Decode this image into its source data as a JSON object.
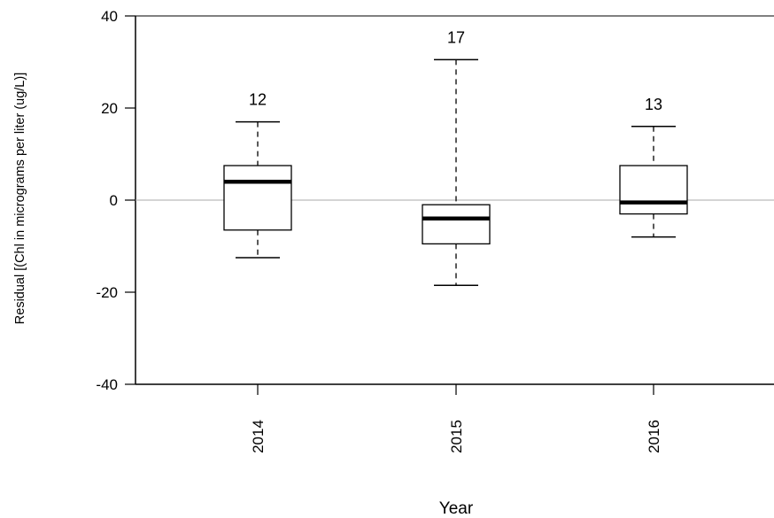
{
  "chart_data": {
    "type": "box",
    "xlabel": "Year",
    "ylabel": "Residual [(Chl in micrograms per liter (ug/L)]",
    "ylim": [
      -40,
      40
    ],
    "yticks": [
      -40,
      -20,
      0,
      20,
      40
    ],
    "reference_line": 0,
    "categories": [
      "2014",
      "2015",
      "2016"
    ],
    "boxes": [
      {
        "category": "2014",
        "n": "12",
        "whisker_low": -12.5,
        "q1": -6.5,
        "median": 4,
        "q3": 7.5,
        "whisker_high": 17
      },
      {
        "category": "2015",
        "n": "17",
        "whisker_low": -18.5,
        "q1": -9.5,
        "median": -4,
        "q3": -1,
        "whisker_high": 30.5
      },
      {
        "category": "2016",
        "n": "13",
        "whisker_low": -8,
        "q1": -3,
        "median": -0.5,
        "q3": 7.5,
        "whisker_high": 16
      }
    ]
  }
}
